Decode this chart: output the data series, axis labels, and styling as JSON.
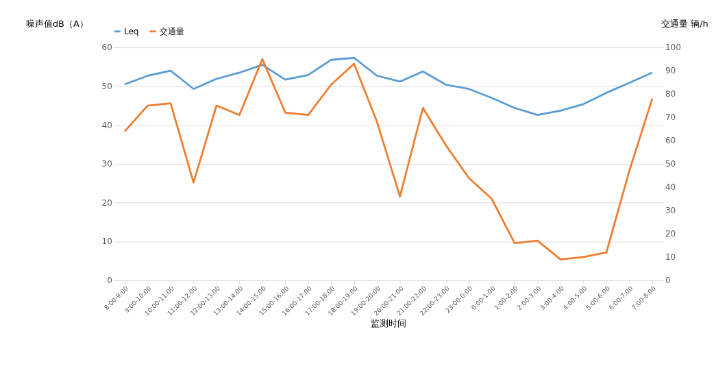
{
  "chart_data": {
    "type": "line",
    "xlabel": "监测时间",
    "ylabel": "噪声值dB（A）",
    "y2label": "交通量 辆/h",
    "categories": [
      "8:00-9:00",
      "9:00-10:00",
      "10:00-11:00",
      "11:00-12:00",
      "12:00-13:00",
      "13:00-14:00",
      "14:00-15:00",
      "15:00-16:00",
      "16:00-17:00",
      "17:00-18:00",
      "18:00-19:00",
      "19:00-20:00",
      "20:00-21:00",
      "21:00-22:00",
      "22:00-23:00",
      "23:00-0:00",
      "0:00-1:00",
      "1:00-2:00",
      "2:00-3:00",
      "3:00-4:00",
      "4:00-5:00",
      "5:00-6:00",
      "6:00-7:00",
      "7:00-8:00"
    ],
    "series": [
      {
        "name": "Leq",
        "color": "#5b9bd5",
        "values": [
          50.5,
          52.7,
          54.0,
          49.3,
          51.9,
          53.5,
          55.5,
          51.7,
          52.9,
          56.8,
          57.3,
          52.7,
          51.2,
          53.8,
          50.4,
          49.3,
          47.0,
          44.4,
          42.6,
          43.7,
          45.4,
          48.3,
          50.9,
          53.5
        ]
      },
      {
        "name": "交通量",
        "color": "#ed7d31",
        "axis": "y2",
        "values": [
          64,
          75,
          76,
          42,
          75,
          71,
          95,
          72,
          71,
          84,
          93,
          68,
          36,
          74,
          58,
          44,
          35,
          16,
          17,
          9,
          10,
          12,
          47,
          78
        ]
      }
    ],
    "ylim": [
      0,
      60
    ],
    "yticks": [
      0,
      10,
      20,
      30,
      40,
      50,
      60
    ],
    "y2lim": [
      0,
      100
    ],
    "y2ticks": [
      0,
      10,
      20,
      30,
      40,
      50,
      60,
      70,
      80,
      90,
      100
    ],
    "grid": "y",
    "legend": "top",
    "marker": "none",
    "line_style": "solid"
  }
}
